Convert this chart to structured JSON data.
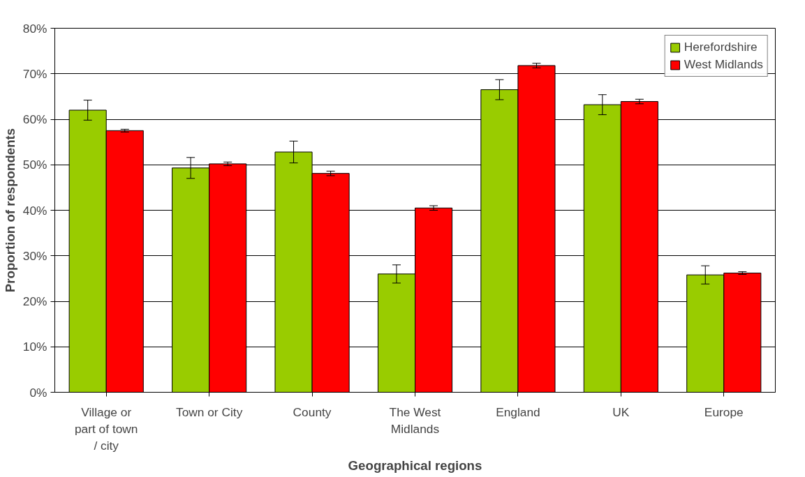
{
  "chart_data": {
    "type": "bar",
    "xlabel": "Geographical regions",
    "ylabel": "Proportion of respondents",
    "categories": [
      "Village or part of town / city",
      "Town or City",
      "County",
      "The West Midlands",
      "England",
      "UK",
      "Europe"
    ],
    "series": [
      {
        "name": "Herefordshire",
        "color": "#99cc00",
        "values": [
          62,
          49.3,
          52.8,
          26,
          66.5,
          63.2,
          25.8
        ],
        "errors": [
          2.2,
          2.3,
          2.4,
          2,
          2.2,
          2.2,
          2
        ]
      },
      {
        "name": "West Midlands",
        "color": "#ff0000",
        "values": [
          57.5,
          50.2,
          48.1,
          40.5,
          71.8,
          63.9,
          26.2
        ],
        "errors": [
          0.3,
          0.4,
          0.5,
          0.5,
          0.5,
          0.5,
          0.3
        ]
      }
    ],
    "ylim": [
      0,
      80
    ],
    "yticks": [
      {
        "value": 0,
        "label": "0%"
      },
      {
        "value": 10,
        "label": "10%"
      },
      {
        "value": 20,
        "label": "20%"
      },
      {
        "value": 30,
        "label": "30%"
      },
      {
        "value": 40,
        "label": "40%"
      },
      {
        "value": 50,
        "label": "50%"
      },
      {
        "value": 60,
        "label": "60%"
      },
      {
        "value": 70,
        "label": "70%"
      },
      {
        "value": 80,
        "label": "80%"
      }
    ],
    "grid": "y",
    "legend": "top right"
  }
}
